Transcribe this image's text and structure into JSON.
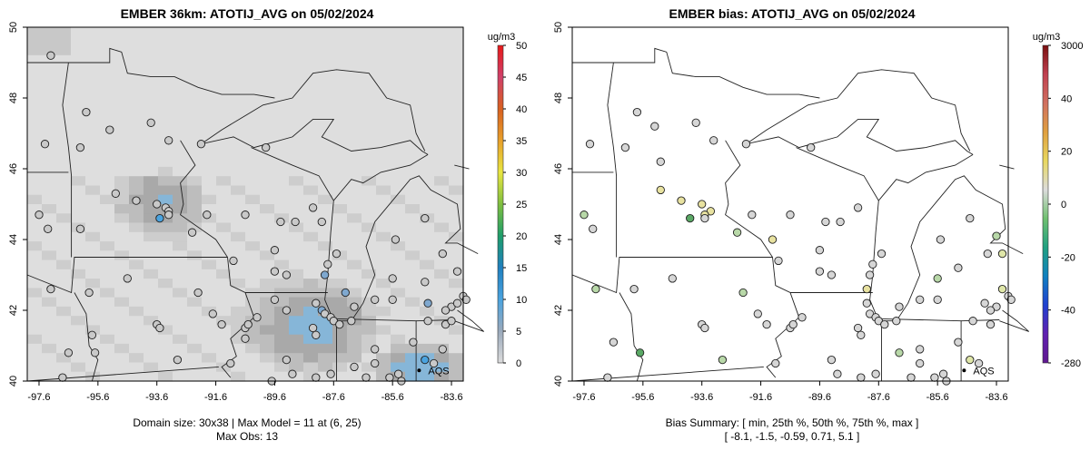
{
  "panels": [
    {
      "id": "concentration",
      "title": "EMBER 36km: ATOTIJ_AVG on 05/02/2024",
      "x_ticks": [
        "-97.6",
        "-95.6",
        "-93.6",
        "-91.6",
        "-89.6",
        "-87.6",
        "-85.6",
        "-83.6"
      ],
      "y_ticks": [
        "40",
        "42",
        "44",
        "46",
        "48",
        "50"
      ],
      "colorbar_unit": "ug/m3",
      "colorbar_ticks": [
        "0",
        "5",
        "10",
        "15",
        "20",
        "25",
        "30",
        "35",
        "40",
        "45",
        "50"
      ],
      "colorbar_colors": [
        "#dcdcdc",
        "#9aa9bb",
        "#4aa3df",
        "#1f7fbf",
        "#1e9e6a",
        "#7fbf3f",
        "#e8e640",
        "#e8a02a",
        "#d86020",
        "#d0406a",
        "#e81818"
      ],
      "marker_label": "AQS",
      "footer_line1": "Domain size: 30x38 | Max Model = 11 at (6, 25)",
      "footer_line2": "Max Obs: 13"
    },
    {
      "id": "bias",
      "title": "EMBER bias: ATOTIJ_AVG on 05/02/2024",
      "x_ticks": [
        "-97.6",
        "-95.6",
        "-93.6",
        "-91.6",
        "-89.6",
        "-87.6",
        "-85.6",
        "-83.6"
      ],
      "y_ticks": [
        "40",
        "42",
        "44",
        "46",
        "48",
        "50"
      ],
      "colorbar_unit": "ug/m3",
      "colorbar_ticks": [
        "3000",
        "40",
        "20",
        "0",
        "-20",
        "-40",
        "-280"
      ],
      "colorbar_colors": [
        "#7a1010",
        "#c04050",
        "#d07060",
        "#e0a040",
        "#e8d860",
        "#dcdcdc",
        "#70c070",
        "#20a080",
        "#1080c0",
        "#2040d0",
        "#6020b0",
        "#601890"
      ],
      "marker_label": "AQS",
      "footer_line1": "Bias Summary: [ min, 25th %, 50th %, 75th %, max ]",
      "footer_line2": "[ -8.1,   -1.5,   -0.59,   0.71,   5.1 ]"
    }
  ],
  "map_data": {
    "lon_range": [
      -98,
      -83.2
    ],
    "lat_range": [
      40,
      50
    ],
    "concentration_sites": [
      {
        "lon": -97.2,
        "lat": 49.2,
        "v": 3
      },
      {
        "lon": -96.0,
        "lat": 47.6,
        "v": 3
      },
      {
        "lon": -95.2,
        "lat": 47.1,
        "v": 3
      },
      {
        "lon": -97.4,
        "lat": 46.7,
        "v": 3
      },
      {
        "lon": -96.2,
        "lat": 46.6,
        "v": 3
      },
      {
        "lon": -93.8,
        "lat": 47.3,
        "v": 3
      },
      {
        "lon": -93.2,
        "lat": 46.8,
        "v": 3
      },
      {
        "lon": -92.1,
        "lat": 46.7,
        "v": 3
      },
      {
        "lon": -89.9,
        "lat": 46.6,
        "v": 3
      },
      {
        "lon": -95.0,
        "lat": 45.3,
        "v": 3
      },
      {
        "lon": -94.3,
        "lat": 45.1,
        "v": 3
      },
      {
        "lon": -93.6,
        "lat": 45.0,
        "v": 3
      },
      {
        "lon": -93.3,
        "lat": 44.9,
        "v": 3
      },
      {
        "lon": -93.2,
        "lat": 44.8,
        "v": 3
      },
      {
        "lon": -93.5,
        "lat": 44.6,
        "v": 10
      },
      {
        "lon": -93.2,
        "lat": 44.7,
        "v": 3
      },
      {
        "lon": -97.6,
        "lat": 44.7,
        "v": 3
      },
      {
        "lon": -97.3,
        "lat": 44.3,
        "v": 3
      },
      {
        "lon": -96.2,
        "lat": 44.3,
        "v": 3
      },
      {
        "lon": -92.4,
        "lat": 44.2,
        "v": 3
      },
      {
        "lon": -91.9,
        "lat": 44.7,
        "v": 3
      },
      {
        "lon": -90.6,
        "lat": 44.7,
        "v": 3
      },
      {
        "lon": -89.4,
        "lat": 44.5,
        "v": 3
      },
      {
        "lon": -88.9,
        "lat": 44.5,
        "v": 3
      },
      {
        "lon": -88.3,
        "lat": 44.9,
        "v": 3
      },
      {
        "lon": -88.0,
        "lat": 44.5,
        "v": 3
      },
      {
        "lon": -89.6,
        "lat": 43.7,
        "v": 3
      },
      {
        "lon": -91.0,
        "lat": 43.4,
        "v": 3
      },
      {
        "lon": -89.6,
        "lat": 43.1,
        "v": 3
      },
      {
        "lon": -89.2,
        "lat": 43.0,
        "v": 3
      },
      {
        "lon": -87.9,
        "lat": 43.0,
        "v": 8
      },
      {
        "lon": -87.8,
        "lat": 43.3,
        "v": 3
      },
      {
        "lon": -87.5,
        "lat": 43.6,
        "v": 3
      },
      {
        "lon": -84.5,
        "lat": 44.6,
        "v": 3
      },
      {
        "lon": -85.5,
        "lat": 44.0,
        "v": 3
      },
      {
        "lon": -83.9,
        "lat": 43.6,
        "v": 3
      },
      {
        "lon": -83.4,
        "lat": 43.1,
        "v": 3
      },
      {
        "lon": -84.5,
        "lat": 42.8,
        "v": 3
      },
      {
        "lon": -85.6,
        "lat": 42.9,
        "v": 3
      },
      {
        "lon": -86.2,
        "lat": 42.3,
        "v": 3
      },
      {
        "lon": -86.9,
        "lat": 42.1,
        "v": 3
      },
      {
        "lon": -85.6,
        "lat": 42.3,
        "v": 3
      },
      {
        "lon": -83.2,
        "lat": 42.4,
        "v": 3
      },
      {
        "lon": -83.1,
        "lat": 42.3,
        "v": 3
      },
      {
        "lon": -83.6,
        "lat": 42.1,
        "v": 3
      },
      {
        "lon": -97.2,
        "lat": 42.6,
        "v": 3
      },
      {
        "lon": -95.9,
        "lat": 42.5,
        "v": 3
      },
      {
        "lon": -95.8,
        "lat": 41.3,
        "v": 3
      },
      {
        "lon": -94.6,
        "lat": 42.9,
        "v": 3
      },
      {
        "lon": -93.6,
        "lat": 41.6,
        "v": 3
      },
      {
        "lon": -93.5,
        "lat": 41.5,
        "v": 3
      },
      {
        "lon": -92.2,
        "lat": 42.5,
        "v": 3
      },
      {
        "lon": -91.7,
        "lat": 41.9,
        "v": 3
      },
      {
        "lon": -91.4,
        "lat": 41.6,
        "v": 3
      },
      {
        "lon": -90.6,
        "lat": 41.5,
        "v": 3
      },
      {
        "lon": -90.5,
        "lat": 41.6,
        "v": 3
      },
      {
        "lon": -90.2,
        "lat": 41.8,
        "v": 3
      },
      {
        "lon": -89.6,
        "lat": 42.3,
        "v": 3
      },
      {
        "lon": -89.2,
        "lat": 42.0,
        "v": 3
      },
      {
        "lon": -88.2,
        "lat": 42.2,
        "v": 3
      },
      {
        "lon": -88.0,
        "lat": 42.0,
        "v": 8
      },
      {
        "lon": -87.9,
        "lat": 41.9,
        "v": 3
      },
      {
        "lon": -87.7,
        "lat": 41.8,
        "v": 3
      },
      {
        "lon": -87.6,
        "lat": 41.7,
        "v": 3
      },
      {
        "lon": -87.4,
        "lat": 41.6,
        "v": 3
      },
      {
        "lon": -87.0,
        "lat": 41.7,
        "v": 3
      },
      {
        "lon": -88.3,
        "lat": 41.5,
        "v": 3
      },
      {
        "lon": -88.2,
        "lat": 41.3,
        "v": 3
      },
      {
        "lon": -87.2,
        "lat": 42.5,
        "v": 8
      },
      {
        "lon": -89.2,
        "lat": 40.6,
        "v": 3
      },
      {
        "lon": -88.2,
        "lat": 40.1,
        "v": 3
      },
      {
        "lon": -89.7,
        "lat": 40.0,
        "v": 3
      },
      {
        "lon": -86.2,
        "lat": 40.9,
        "v": 3
      },
      {
        "lon": -86.2,
        "lat": 40.5,
        "v": 3
      },
      {
        "lon": -86.9,
        "lat": 40.4,
        "v": 3
      },
      {
        "lon": -85.4,
        "lat": 40.2,
        "v": 3
      },
      {
        "lon": -85.7,
        "lat": 40.1,
        "v": 3
      },
      {
        "lon": -84.9,
        "lat": 41.1,
        "v": 3
      },
      {
        "lon": -84.4,
        "lat": 41.7,
        "v": 3
      },
      {
        "lon": -83.8,
        "lat": 41.6,
        "v": 3
      },
      {
        "lon": -83.6,
        "lat": 41.7,
        "v": 3
      },
      {
        "lon": -84.2,
        "lat": 40.5,
        "v": 3
      },
      {
        "lon": -84.5,
        "lat": 40.6,
        "v": 10
      },
      {
        "lon": -83.8,
        "lat": 42.0,
        "v": 3
      },
      {
        "lon": -83.4,
        "lat": 42.2,
        "v": 3
      },
      {
        "lon": -84.4,
        "lat": 42.2,
        "v": 8
      },
      {
        "lon": -83.9,
        "lat": 40.9,
        "v": 3
      },
      {
        "lon": -96.8,
        "lat": 40.1,
        "v": 3
      },
      {
        "lon": -95.7,
        "lat": 40.8,
        "v": 3
      },
      {
        "lon": -96.6,
        "lat": 40.8,
        "v": 3
      },
      {
        "lon": -92.9,
        "lat": 40.6,
        "v": 3
      },
      {
        "lon": -91.1,
        "lat": 40.5,
        "v": 3
      },
      {
        "lon": -90.6,
        "lat": 41.2,
        "v": 3
      },
      {
        "lon": -89.0,
        "lat": 40.2,
        "v": 3
      },
      {
        "lon": -87.7,
        "lat": 40.2,
        "v": 3
      },
      {
        "lon": -86.5,
        "lat": 40.1,
        "v": 3
      },
      {
        "lon": -85.3,
        "lat": 40.0,
        "v": 3
      }
    ],
    "bias_sites": [
      {
        "lon": -95.8,
        "lat": 47.6,
        "v": -1
      },
      {
        "lon": -95.2,
        "lat": 47.2,
        "v": -1
      },
      {
        "lon": -93.8,
        "lat": 47.3,
        "v": -1
      },
      {
        "lon": -93.2,
        "lat": 46.8,
        "v": -1
      },
      {
        "lon": -92.1,
        "lat": 46.7,
        "v": -1
      },
      {
        "lon": -89.9,
        "lat": 46.6,
        "v": -1
      },
      {
        "lon": -97.4,
        "lat": 46.7,
        "v": -1
      },
      {
        "lon": -96.2,
        "lat": 46.6,
        "v": -1
      },
      {
        "lon": -95.0,
        "lat": 46.2,
        "v": -1
      },
      {
        "lon": -95.0,
        "lat": 45.4,
        "v": 5
      },
      {
        "lon": -94.3,
        "lat": 45.1,
        "v": 5
      },
      {
        "lon": -93.6,
        "lat": 45.0,
        "v": 5
      },
      {
        "lon": -93.3,
        "lat": 44.8,
        "v": 5
      },
      {
        "lon": -93.5,
        "lat": 44.7,
        "v": 5
      },
      {
        "lon": -94.0,
        "lat": 44.6,
        "v": -5
      },
      {
        "lon": -93.5,
        "lat": 44.6,
        "v": -1
      },
      {
        "lon": -97.6,
        "lat": 44.7,
        "v": -3
      },
      {
        "lon": -97.3,
        "lat": 44.3,
        "v": -1
      },
      {
        "lon": -92.4,
        "lat": 44.2,
        "v": -3
      },
      {
        "lon": -91.9,
        "lat": 44.7,
        "v": -1
      },
      {
        "lon": -90.6,
        "lat": 44.7,
        "v": -1
      },
      {
        "lon": -89.4,
        "lat": 44.5,
        "v": -1
      },
      {
        "lon": -88.9,
        "lat": 44.5,
        "v": -1
      },
      {
        "lon": -88.3,
        "lat": 44.9,
        "v": -1
      },
      {
        "lon": -91.2,
        "lat": 44.0,
        "v": 5
      },
      {
        "lon": -89.6,
        "lat": 43.7,
        "v": -1
      },
      {
        "lon": -91.0,
        "lat": 43.4,
        "v": -1
      },
      {
        "lon": -89.6,
        "lat": 43.1,
        "v": -1
      },
      {
        "lon": -89.2,
        "lat": 43.0,
        "v": -1
      },
      {
        "lon": -87.9,
        "lat": 43.0,
        "v": -1
      },
      {
        "lon": -87.8,
        "lat": 43.3,
        "v": -1
      },
      {
        "lon": -87.5,
        "lat": 43.6,
        "v": -1
      },
      {
        "lon": -84.5,
        "lat": 44.6,
        "v": -1
      },
      {
        "lon": -85.5,
        "lat": 44.0,
        "v": -1
      },
      {
        "lon": -83.9,
        "lat": 43.6,
        "v": -1
      },
      {
        "lon": -83.4,
        "lat": 43.6,
        "v": 3
      },
      {
        "lon": -83.6,
        "lat": 44.1,
        "v": -3
      },
      {
        "lon": -85.6,
        "lat": 42.9,
        "v": -3
      },
      {
        "lon": -84.9,
        "lat": 43.2,
        "v": -1
      },
      {
        "lon": -86.2,
        "lat": 42.3,
        "v": -1
      },
      {
        "lon": -86.9,
        "lat": 42.1,
        "v": -1
      },
      {
        "lon": -85.6,
        "lat": 42.3,
        "v": -1
      },
      {
        "lon": -83.2,
        "lat": 42.4,
        "v": -1
      },
      {
        "lon": -83.1,
        "lat": 42.3,
        "v": -1
      },
      {
        "lon": -83.6,
        "lat": 42.1,
        "v": -1
      },
      {
        "lon": -83.4,
        "lat": 42.6,
        "v": 3
      },
      {
        "lon": -97.2,
        "lat": 42.6,
        "v": -3
      },
      {
        "lon": -95.9,
        "lat": 42.6,
        "v": -1
      },
      {
        "lon": -94.6,
        "lat": 42.9,
        "v": -1
      },
      {
        "lon": -93.6,
        "lat": 41.6,
        "v": -1
      },
      {
        "lon": -93.5,
        "lat": 41.5,
        "v": -1
      },
      {
        "lon": -92.2,
        "lat": 42.5,
        "v": -3
      },
      {
        "lon": -91.7,
        "lat": 41.9,
        "v": -1
      },
      {
        "lon": -91.4,
        "lat": 41.6,
        "v": -1
      },
      {
        "lon": -90.6,
        "lat": 41.5,
        "v": -1
      },
      {
        "lon": -90.5,
        "lat": 41.6,
        "v": -1
      },
      {
        "lon": -90.2,
        "lat": 41.8,
        "v": -1
      },
      {
        "lon": -88.0,
        "lat": 42.6,
        "v": 5
      },
      {
        "lon": -88.0,
        "lat": 42.2,
        "v": -1
      },
      {
        "lon": -87.9,
        "lat": 41.9,
        "v": -1
      },
      {
        "lon": -87.7,
        "lat": 41.8,
        "v": -1
      },
      {
        "lon": -87.6,
        "lat": 41.7,
        "v": -1
      },
      {
        "lon": -87.4,
        "lat": 41.6,
        "v": -1
      },
      {
        "lon": -87.0,
        "lat": 41.7,
        "v": -1
      },
      {
        "lon": -88.3,
        "lat": 41.5,
        "v": -1
      },
      {
        "lon": -88.2,
        "lat": 41.3,
        "v": -1
      },
      {
        "lon": -89.2,
        "lat": 40.6,
        "v": -1
      },
      {
        "lon": -88.2,
        "lat": 40.1,
        "v": -1
      },
      {
        "lon": -86.2,
        "lat": 40.9,
        "v": -1
      },
      {
        "lon": -86.2,
        "lat": 40.5,
        "v": -1
      },
      {
        "lon": -86.9,
        "lat": 40.8,
        "v": -3
      },
      {
        "lon": -85.4,
        "lat": 40.2,
        "v": -1
      },
      {
        "lon": -85.7,
        "lat": 40.1,
        "v": -1
      },
      {
        "lon": -84.9,
        "lat": 41.1,
        "v": -1
      },
      {
        "lon": -84.4,
        "lat": 41.7,
        "v": -1
      },
      {
        "lon": -83.8,
        "lat": 41.6,
        "v": -1
      },
      {
        "lon": -84.2,
        "lat": 40.5,
        "v": -1
      },
      {
        "lon": -84.5,
        "lat": 40.6,
        "v": 3
      },
      {
        "lon": -83.8,
        "lat": 42.0,
        "v": -1
      },
      {
        "lon": -84.0,
        "lat": 42.2,
        "v": -1
      },
      {
        "lon": -96.8,
        "lat": 40.1,
        "v": -1
      },
      {
        "lon": -95.7,
        "lat": 40.8,
        "v": -5
      },
      {
        "lon": -96.6,
        "lat": 41.1,
        "v": -1
      },
      {
        "lon": -92.9,
        "lat": 40.6,
        "v": -3
      },
      {
        "lon": -91.1,
        "lat": 40.5,
        "v": -1
      },
      {
        "lon": -89.0,
        "lat": 40.2,
        "v": -1
      },
      {
        "lon": -87.7,
        "lat": 40.2,
        "v": -1
      },
      {
        "lon": -86.5,
        "lat": 40.1,
        "v": -1
      },
      {
        "lon": -85.3,
        "lat": 40.0,
        "v": -1
      }
    ],
    "aqs_marker": {
      "lon": -84.7,
      "lat": 40.3
    }
  }
}
